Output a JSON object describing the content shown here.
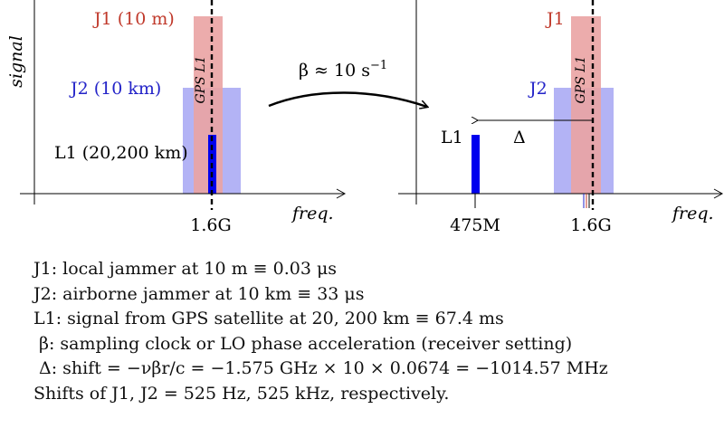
{
  "left_panel": {
    "y_axis_label": "signal",
    "x_axis_label": "freq.",
    "tick_label": "1.6G",
    "vertical_line_label": "GPS L1",
    "j1_label": "J1 (10 m)",
    "j2_label": "J2 (10 km)",
    "l1_label": "L1 (20,200 km)"
  },
  "transform": {
    "label": "β ≈ 10 s",
    "exponent": "−1"
  },
  "right_panel": {
    "x_axis_label": "freq.",
    "tick_475": "475M",
    "tick_16": "1.6G",
    "vertical_line_label": "GPS L1",
    "j1_label": "J1",
    "j2_label": "J2",
    "l1_label": "L1",
    "shift_label": "Δ"
  },
  "legend": {
    "line1": "J1:  local jammer at 10 m ≡ 0.03 μs",
    "line2": "J2:  airborne jammer at 10 km ≡ 33 μs",
    "line3": "L1:  signal from GPS satellite at 20, 200 km ≡ 67.4 ms",
    "line4": "β:  sampling clock or LO phase acceleration (receiver setting)",
    "line5": "Δ:  shift = −νβr/c = −1.575 GHz × 10 × 0.0674 = −1014.57 MHz",
    "line6": "Shifts of J1, J2 = 525 Hz, 525 kHz, respectively."
  },
  "colors": {
    "j1_fill": "#eaa3a3",
    "j1_text": "#c0392b",
    "j2_fill": "#b3b3f5",
    "j2_text": "#2323c8",
    "l1_fill": "#0000ee"
  }
}
